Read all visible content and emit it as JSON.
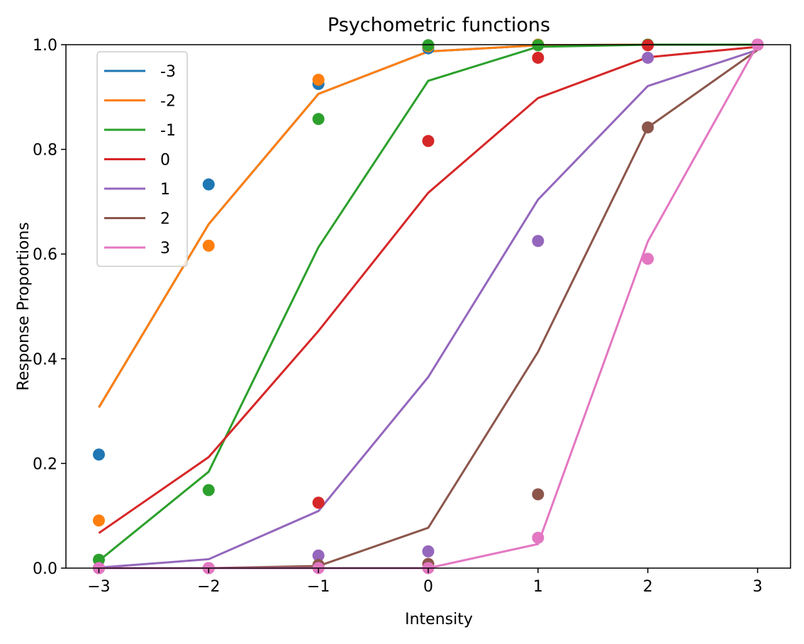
{
  "chart_data": {
    "type": "line",
    "title": "Psychometric functions",
    "xlabel": "Intensity",
    "ylabel": "Response Proportions",
    "xlim": [
      -3.3,
      3.3
    ],
    "ylim": [
      0,
      1
    ],
    "xticks": [
      -3,
      -2,
      -1,
      0,
      1,
      2,
      3
    ],
    "xtick_labels": [
      "−3",
      "−2",
      "−1",
      "0",
      "1",
      "2",
      "3"
    ],
    "yticks": [
      0,
      0.2,
      0.4,
      0.6,
      0.8,
      1.0
    ],
    "ytick_labels": [
      "0.0",
      "0.2",
      "0.4",
      "0.6",
      "0.8",
      "1.0"
    ],
    "grid": false,
    "legend_position": "upper-left",
    "x": [
      -3,
      -2,
      -1,
      0,
      1,
      2,
      3
    ],
    "series": [
      {
        "name": "-3",
        "color": "#1f77b4",
        "fit": [
          0.307,
          0.657,
          0.906,
          0.987,
          0.999,
          1.0,
          1.0
        ],
        "points": [
          0.217,
          0.733,
          0.925,
          0.993,
          1.0,
          1.0,
          1.0
        ]
      },
      {
        "name": "-2",
        "color": "#ff7f0e",
        "fit": [
          0.307,
          0.657,
          0.906,
          0.987,
          0.999,
          1.0,
          1.0
        ],
        "points": [
          0.091,
          0.616,
          0.933,
          0.997,
          1.0,
          1.0,
          1.0
        ]
      },
      {
        "name": "-1",
        "color": "#2ca02c",
        "fit": [
          0.014,
          0.184,
          0.613,
          0.931,
          0.996,
          1.0,
          1.0
        ],
        "points": [
          0.016,
          0.149,
          0.858,
          0.999,
          0.999,
          1.0,
          1.0
        ]
      },
      {
        "name": "0",
        "color": "#d62728",
        "fit": [
          0.067,
          0.212,
          0.453,
          0.717,
          0.898,
          0.976,
          0.996
        ],
        "points": [
          0.0,
          0.0,
          0.125,
          0.816,
          0.975,
          0.999,
          1.0
        ]
      },
      {
        "name": "1",
        "color": "#9467bd",
        "fit": [
          0.001,
          0.017,
          0.109,
          0.365,
          0.704,
          0.921,
          0.99
        ],
        "points": [
          0.0,
          0.0,
          0.024,
          0.032,
          0.625,
          0.975,
          1.0
        ]
      },
      {
        "name": "2",
        "color": "#8c564b",
        "fit": [
          0.0,
          0.0,
          0.004,
          0.077,
          0.413,
          0.842,
          0.99
        ],
        "points": [
          0.0,
          0.0,
          0.006,
          0.008,
          0.141,
          0.842,
          1.0
        ]
      },
      {
        "name": "3",
        "color": "#e377c2",
        "fit": [
          0.0,
          0.0,
          0.0,
          0.0,
          0.046,
          0.624,
          1.0
        ],
        "points": [
          0.0,
          0.0,
          0.0,
          0.0,
          0.058,
          0.591,
          1.0
        ]
      }
    ]
  }
}
